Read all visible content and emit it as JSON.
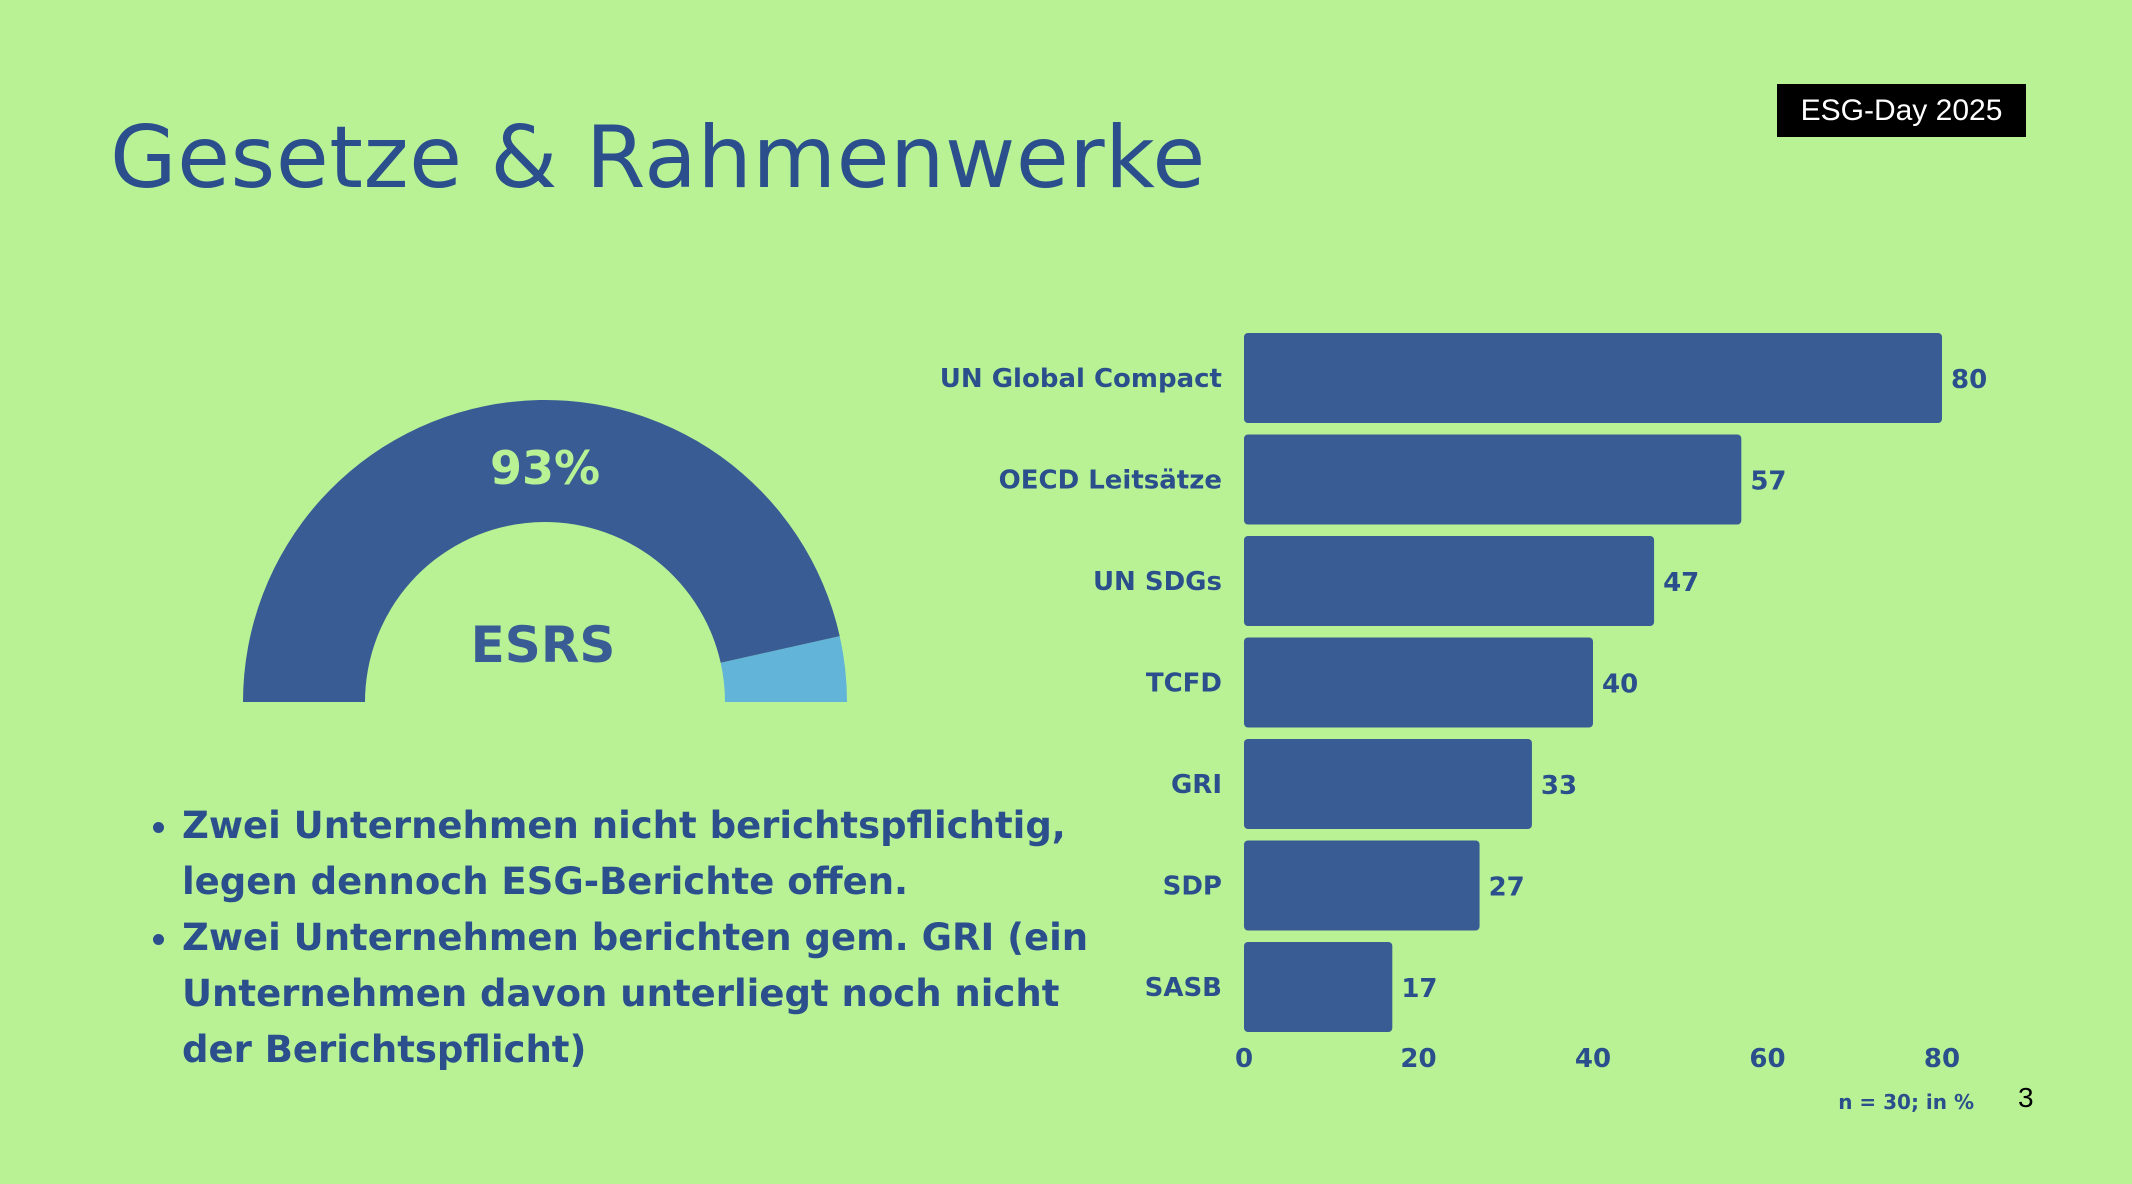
{
  "slide": {
    "badge": "ESG-Day 2025",
    "title": "Gesetze & Rahmenwerke",
    "page_number": "3"
  },
  "gauge": {
    "value_label": "93%",
    "value": 93,
    "center_label": "ESRS",
    "colors": {
      "filled": "#3a5c94",
      "remainder": "#62b4d8",
      "value_text": "#b8f294",
      "label_text": "#3a5c94"
    }
  },
  "bullets": [
    "Zwei Unternehmen nicht  berichtspflichtig, legen dennoch ESG-Berichte offen.",
    "Zwei Unternehmen berichten gem. GRI (ein Unternehmen davon unterliegt noch nicht der Berichtspflicht)"
  ],
  "chart_data": {
    "type": "bar",
    "orientation": "horizontal",
    "categories": [
      "UN Global Compact",
      "OECD Leitsätze",
      "UN SDGs",
      "TCFD",
      "GRI",
      "SDP",
      "SASB"
    ],
    "values": [
      80,
      57,
      47,
      40,
      33,
      27,
      17
    ],
    "data_labels": [
      "80",
      "57",
      "47",
      "40",
      "33",
      "27",
      "17"
    ],
    "xlim": [
      0,
      80
    ],
    "xticks": [
      "0",
      "20",
      "40",
      "60",
      "80"
    ],
    "grid": false,
    "bar_color": "#3a5c94",
    "text_color": "#2a4f8c",
    "footnote": "n = 30; in %"
  }
}
